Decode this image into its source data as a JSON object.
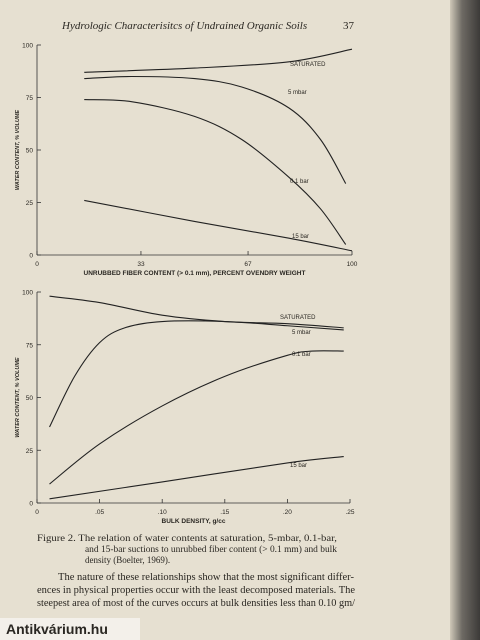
{
  "header": {
    "title": "Hydrologic Characterisitcs of Undrained Organic Soils",
    "page_number": "37"
  },
  "chart_data": [
    {
      "type": "line",
      "xlabel": "UNRUBBED FIBER CONTENT (> 0.1 mm), PERCENT OVENDRY WEIGHT",
      "ylabel": "WATER CONTENT, % VOLUME",
      "xlim": [
        0,
        100
      ],
      "ylim": [
        0,
        100
      ],
      "xticks": [
        0,
        33,
        67,
        100
      ],
      "yticks": [
        0,
        25,
        50,
        75,
        100
      ],
      "series": [
        {
          "name": "SATURATED",
          "color": "#222",
          "x": [
            15,
            50,
            80,
            100
          ],
          "values": [
            87,
            89,
            92,
            98
          ]
        },
        {
          "name": "5 mbar",
          "color": "#222",
          "x": [
            15,
            30,
            50,
            65,
            80,
            90,
            98
          ],
          "values": [
            84,
            85,
            84,
            80,
            70,
            55,
            34
          ]
        },
        {
          "name": "0.1 bar",
          "color": "#222",
          "x": [
            15,
            30,
            50,
            65,
            80,
            90,
            98
          ],
          "values": [
            74,
            73,
            66,
            55,
            37,
            22,
            5
          ]
        },
        {
          "name": "15 bar",
          "color": "#222",
          "x": [
            15,
            50,
            80,
            100
          ],
          "values": [
            26,
            16,
            8,
            2
          ]
        }
      ]
    },
    {
      "type": "line",
      "xlabel": "BULK DENSITY, g/cc",
      "ylabel": "WATER CONTENT, % VOLUME",
      "xlim": [
        0,
        0.25
      ],
      "ylim": [
        0,
        100
      ],
      "xticks": [
        0,
        {
          "value": 0.05,
          "label": ".05"
        },
        {
          "value": 0.1,
          "label": ".10"
        },
        {
          "value": 0.15,
          "label": ".15"
        },
        {
          "value": 0.2,
          "label": ".20"
        },
        {
          "value": 0.25,
          "label": ".25"
        }
      ],
      "yticks": [
        0,
        25,
        50,
        75,
        100
      ],
      "series": [
        {
          "name": "SATURATED",
          "color": "#222",
          "x": [
            0.01,
            0.05,
            0.1,
            0.15,
            0.2,
            0.245
          ],
          "values": [
            98,
            95,
            89,
            86,
            85,
            83
          ]
        },
        {
          "name": "5 mbar",
          "color": "#222",
          "x": [
            0.01,
            0.03,
            0.05,
            0.07,
            0.1,
            0.15,
            0.2,
            0.245
          ],
          "values": [
            36,
            60,
            76,
            83,
            86,
            86,
            84,
            82
          ]
        },
        {
          "name": "0.1 bar",
          "color": "#222",
          "x": [
            0.01,
            0.05,
            0.1,
            0.15,
            0.2,
            0.22,
            0.245
          ],
          "values": [
            9,
            28,
            46,
            60,
            70,
            72,
            72
          ]
        },
        {
          "name": "15 bar",
          "color": "#222",
          "x": [
            0.01,
            0.1,
            0.2,
            0.245
          ],
          "values": [
            2,
            10,
            19,
            22
          ]
        }
      ]
    }
  ],
  "caption": [
    "Figure 2.  The relation of water contents at saturation, 5-mbar, 0.1-bar,",
    "and 15-bar suctions to unrubbed fiber content (> 0.1 mm) and bulk",
    "density (Boelter, 1969)."
  ],
  "body": [
    "The nature of these relationships show that the most significant differ-",
    "ences in physical properties occur with the least decomposed materials. The",
    "steepest area of most of the curves occurs at bulk densities less than 0.10 gm/"
  ],
  "watermark": "Antikvárium.hu"
}
